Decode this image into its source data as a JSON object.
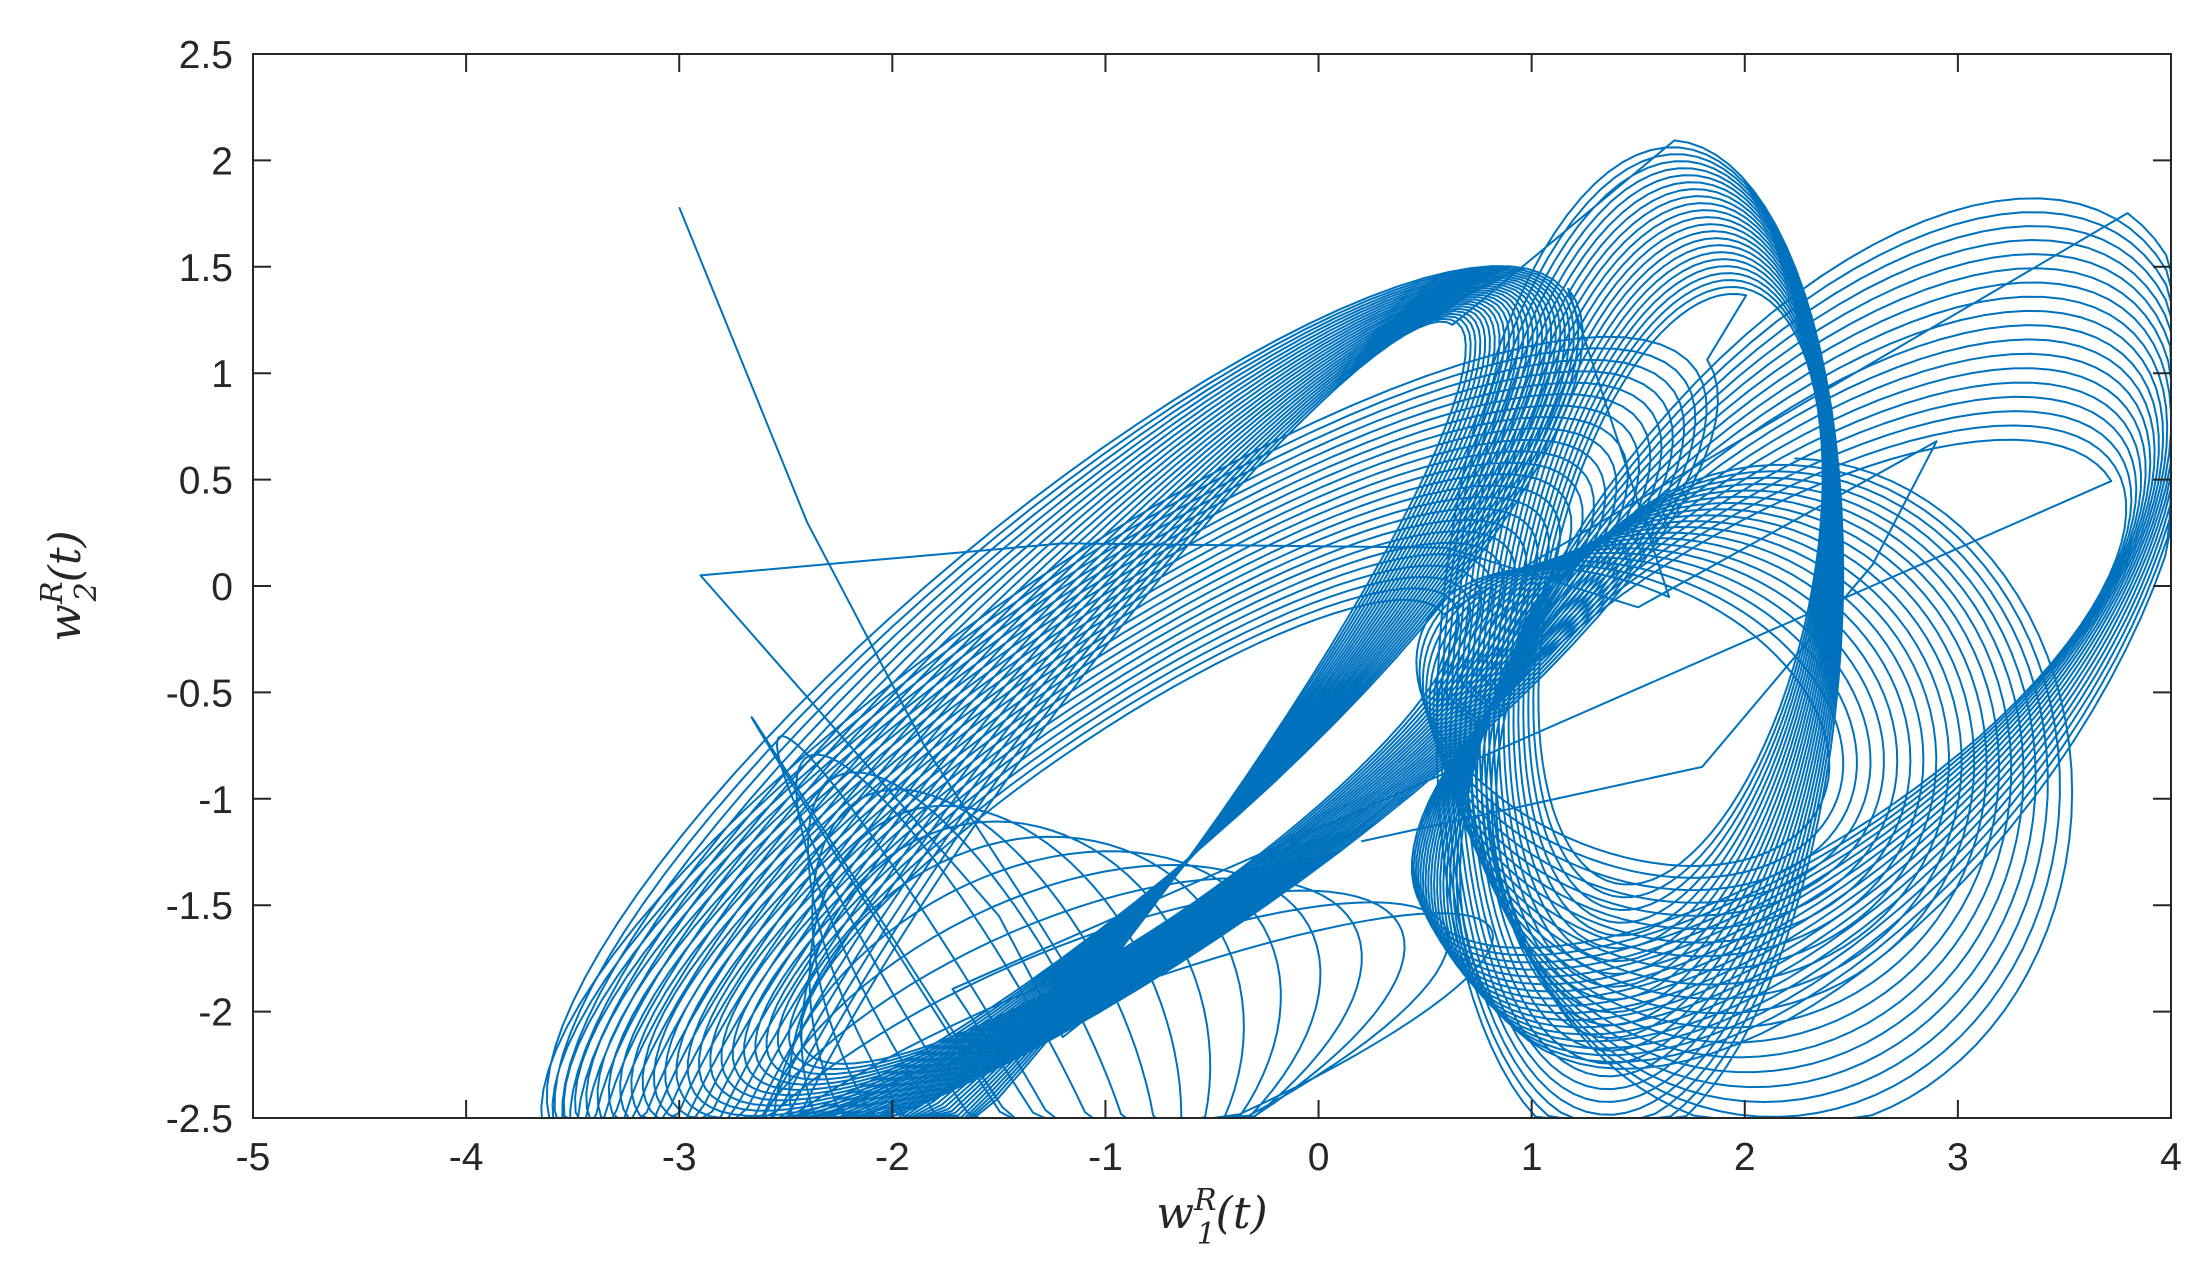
{
  "chart_data": {
    "type": "line",
    "xlabel": {
      "base": "w",
      "sup": "R",
      "sub": "1",
      "arg": "(t)"
    },
    "ylabel": {
      "base": "w",
      "sup": "R",
      "sub": "2",
      "arg": "(t)"
    },
    "xlim": [
      -5,
      4
    ],
    "ylim": [
      -2.5,
      2.5
    ],
    "x_ticks": [
      -5,
      -4,
      -3,
      -2,
      -1,
      0,
      1,
      2,
      3,
      4
    ],
    "y_ticks": [
      -2.5,
      -2,
      -1.5,
      -1,
      -0.5,
      0,
      0.5,
      1,
      1.5,
      2,
      2.5
    ],
    "x_tick_labels": [
      "-5",
      "-4",
      "-3",
      "-2",
      "-1",
      "0",
      "1",
      "2",
      "3",
      "4"
    ],
    "y_tick_labels": [
      "-2.5",
      "-2",
      "-1.5",
      "-1",
      "-0.5",
      "0",
      "0.5",
      "1",
      "1.5",
      "2",
      "2.5"
    ],
    "grid": false,
    "box": true,
    "line_color": "#0072BD",
    "axis_color": "#262626",
    "series": [
      {
        "trajectory_phases": [
          {
            "kind": "spiral",
            "turns": 14,
            "from": [
              -1.05,
              -2.1,
              -2.35,
              0.35,
              0.35
            ],
            "to": [
              -1.8,
              0.1,
              -1.95,
              1.7,
              0.6
            ]
          },
          {
            "kind": "spiral",
            "turns": 18,
            "from": [
              2.1,
              1.9,
              -0.5,
              0.75,
              0.55
            ],
            "to": [
              2.4,
              2.4,
              -0.2,
              1.25,
              0.95
            ]
          },
          {
            "kind": "spiral",
            "turns": 24,
            "from": [
              -0.9,
              1.8,
              -1.15,
              0.45,
              0.6
            ],
            "to": [
              -0.9,
              3.3,
              -0.8,
              0.95,
              0.6
            ]
          },
          {
            "kind": "spiral",
            "turns": 22,
            "from": [
              1.7,
              1.4,
              0.0,
              0.6,
              1.35
            ],
            "to": [
              1.5,
              2.4,
              -0.3,
              0.95,
              1.5
            ]
          },
          {
            "kind": "spiral",
            "turns": 26,
            "from": [
              -1.0,
              2.8,
              -1.05,
              0.45,
              0.95
            ],
            "to": [
              -1.2,
              3.1,
              -0.6,
              0.9,
              0.7
            ]
          },
          {
            "kind": "spiral",
            "turns": 20,
            "from": [
              1.4,
              0.6,
              -0.6,
              1.0,
              1.15
            ],
            "to": [
              2.2,
              1.6,
              -1.0,
              1.35,
              1.55
            ]
          }
        ],
        "transient_points": [
          [
            -3.0,
            1.78
          ],
          [
            -2.4,
            0.3
          ],
          [
            -1.85,
            -0.75
          ],
          [
            -1.3,
            -1.6
          ],
          [
            -1.05,
            -2.0
          ],
          [
            -1.2,
            -2.12
          ],
          [
            -1.5,
            -1.55
          ],
          [
            -2.9,
            0.05
          ],
          [
            -1.2,
            0.2
          ],
          [
            0.6,
            0.18
          ],
          [
            1.5,
            -0.1
          ],
          [
            2.9,
            0.68
          ],
          [
            2.6,
            0.1
          ],
          [
            1.8,
            -0.85
          ],
          [
            0.2,
            -1.2
          ]
        ]
      }
    ]
  }
}
